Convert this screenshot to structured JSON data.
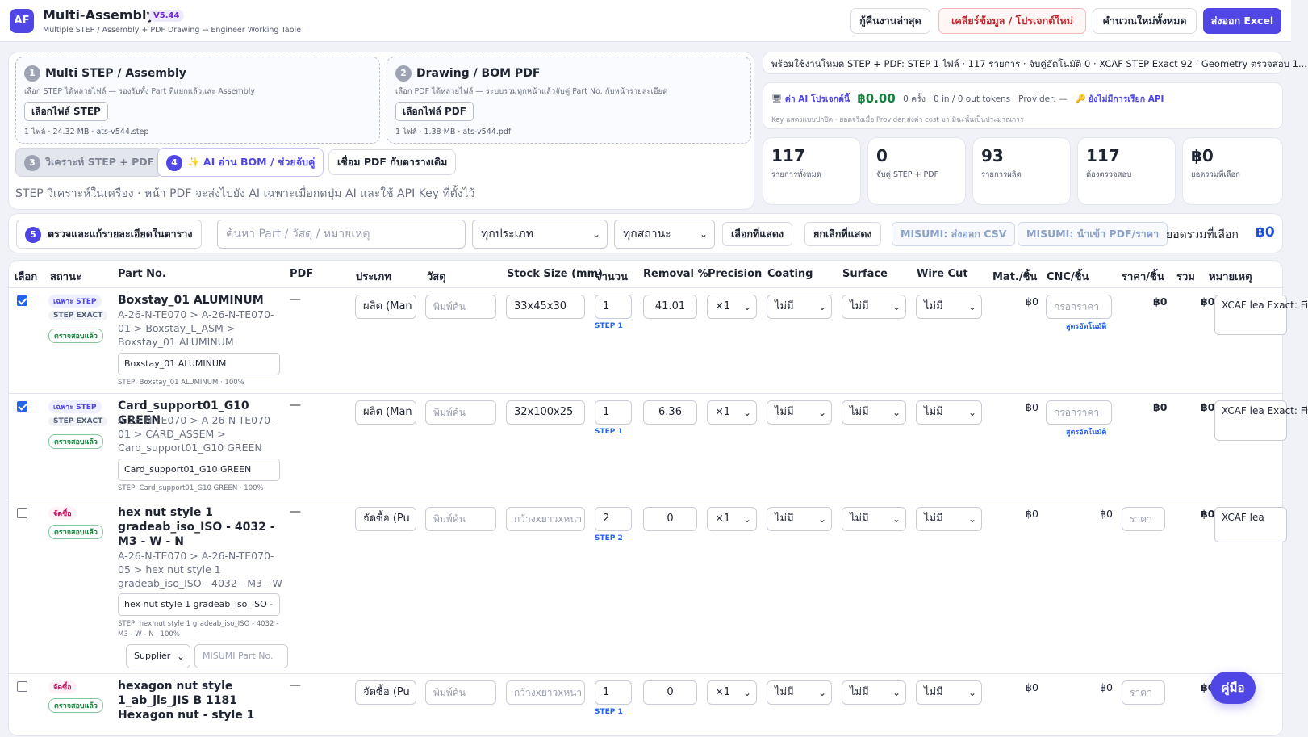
{
  "app": {
    "logo": "AF",
    "title": "Multi-Assembly",
    "version": "V5.44",
    "subtitle": "Multiple STEP / Assembly + PDF Drawing → Engineer Working Table"
  },
  "header_actions": {
    "restore": "กู้คืนงานล่าสุด",
    "clear": "เคลียร์ข้อมูล / โปรเจกต์ใหม่",
    "recalc": "คำนวณใหม่ทั้งหมด",
    "export": "ส่งออก Excel"
  },
  "step1": {
    "num": "1",
    "title": "Multi STEP / Assembly",
    "desc": "เลือก STEP ได้หลายไฟล์ — รองรับทั้ง Part ที่แยกแล้วและ Assembly",
    "button": "เลือกไฟล์ STEP",
    "file_info": "1 ไฟล์ · 24.32 MB · ats-v544.step"
  },
  "step2": {
    "num": "2",
    "title": "Drawing / BOM PDF",
    "desc": "เลือก PDF ได้หลายไฟล์ — ระบบรวมทุกหน้าแล้วจับคู่ Part No. กับหน้ารายละเอียด",
    "button": "เลือกไฟล์ PDF",
    "file_info": "1 ไฟล์ · 1.38 MB · ats-v544.pdf"
  },
  "actions": {
    "analyze_num": "3",
    "analyze": "วิเคราะห์ STEP + PDF",
    "ai_num": "4",
    "ai": "✨ AI อ่าน BOM / ช่วยจับคู่",
    "link_pdf": "เชื่อม PDF กับตารางเดิม",
    "note": "STEP วิเคราะห์ในเครื่อง · หน้า PDF จะส่งไปยัง AI เฉพาะเมื่อกดปุ่ม AI และใช้ API Key ที่ตั้งไว้"
  },
  "status": {
    "text": "พร้อมใช้งานโหมด STEP + PDF: STEP 1 ไฟล์ · 117 รายการ · จับคู่อัตโนมัติ 0 · XCAF STEP Exact 92 · Geometry ตรวจสอบ 1..."
  },
  "cost": {
    "icon": "🖥",
    "label": "ค่า AI โปรเจกต์นี้",
    "amount": "฿0.00",
    "calls": "0 ครั้ง",
    "tokens": "0 in / 0 out tokens",
    "provider": "Provider: —",
    "warn_icon": "🔑",
    "warn": "ยังไม่มีการเรียก API",
    "note": "Key แสดงแบบปกปิด · ยอดจริงเมื่อ Provider ส่งค่า cost มา มิฉะนั้นเป็นประมาณการ"
  },
  "stats": [
    {
      "value": "117",
      "label": "รายการทั้งหมด"
    },
    {
      "value": "0",
      "label": "จับคู่ STEP + PDF"
    },
    {
      "value": "93",
      "label": "รายการผลิต"
    },
    {
      "value": "117",
      "label": "ต้องตรวจสอบ"
    },
    {
      "value": "฿0",
      "label": "ยอดรวมที่เลือก"
    }
  ],
  "filter": {
    "num": "5",
    "title": "ตรวจและแก้รายละเอียดในตาราง",
    "search_placeholder": "ค้นหา Part / วัสดุ / หมายเหตุ",
    "type_value": "ทุกประเภท",
    "status_value": "ทุกสถานะ",
    "select_shown": "เลือกที่แสดง",
    "deselect_shown": "ยกเลิกที่แสดง",
    "misumi_export": "MISUMI: ส่งออก CSV",
    "misumi_import": "MISUMI: นำเข้า PDF/ราคา",
    "total_label": "ยอดรวมที่เลือก",
    "total_value": "฿0"
  },
  "columns": [
    "เลือก",
    "สถานะ",
    "Part No.",
    "PDF",
    "ประเภท",
    "วัสดุ",
    "Stock Size (mm)",
    "จำนวน",
    "Removal %",
    "Precision",
    "Coating",
    "Surface",
    "Wire Cut",
    "Mat./ชิ้น",
    "CNC/ชิ้น",
    "ราคา/ชิ้น",
    "รวม",
    "หมายเหตุ"
  ],
  "rows": [
    {
      "checked": true,
      "badges": [
        "เฉพาะ STEP",
        "STEP EXACT",
        "ตรวจสอบแล้ว"
      ],
      "name": "Boxstay_01 ALUMINUM",
      "path": "A-26-N-TE070 > A-26-N-TE070-01 > Boxstay_L_ASM > Boxstay_01 ALUMINUM",
      "name_input": "Boxstay_01 ALUMINUM",
      "meta": "STEP: Boxstay_01 ALUMINUM · 100%",
      "pdf": "—",
      "type": "ผลิต (Man",
      "material_placeholder": "พิมพ์ค้น",
      "stock": "33x45x30",
      "qty": "1",
      "qty_note": "STEP 1",
      "removal": "41.01",
      "precision": "×1",
      "coating": "ไม่มี",
      "surface": "ไม่มี",
      "wirecut": "ไม่มี",
      "mat_cost": "฿0",
      "cnc_placeholder": "กรอกราคา",
      "cnc_note": "สูตรอัตโนมัติ",
      "unit_price": "฿0",
      "total": "฿0",
      "note": "XCAF lea Exact: Fi"
    },
    {
      "checked": true,
      "badges": [
        "เฉพาะ STEP",
        "STEP EXACT",
        "ตรวจสอบแล้ว"
      ],
      "name": "Card_support01_G10 GREEN",
      "path": "A-26-N-TE070 > A-26-N-TE070-01 > CARD_ASSEM > Card_support01_G10 GREEN",
      "name_input": "Card_support01_G10 GREEN",
      "meta": "STEP: Card_support01_G10 GREEN · 100%",
      "pdf": "—",
      "type": "ผลิต (Man",
      "material_placeholder": "พิมพ์ค้น",
      "stock": "32x100x25",
      "qty": "1",
      "qty_note": "STEP 1",
      "removal": "6.36",
      "precision": "×1",
      "coating": "ไม่มี",
      "surface": "ไม่มี",
      "wirecut": "ไม่มี",
      "mat_cost": "฿0",
      "cnc_placeholder": "กรอกราคา",
      "cnc_note": "สูตรอัตโนมัติ",
      "unit_price": "฿0",
      "total": "฿0",
      "note": "XCAF lea Exact: Fi"
    },
    {
      "checked": false,
      "badges": [
        "จัดซื้อ",
        "ตรวจสอบแล้ว"
      ],
      "name": "hex nut style 1 gradeab_iso_ISO - 4032 - M3 - W - N",
      "path": "A-26-N-TE070 > A-26-N-TE070-05 > hex nut style 1 gradeab_iso_ISO - 4032 - M3 - W - N",
      "name_input": "hex nut style 1 gradeab_iso_ISO -",
      "meta": "STEP: hex nut style 1 gradeab_iso_ISO - 4032 - M3 - W - N · 100%",
      "supplier": "Supplier",
      "misumi_placeholder": "MISUMI Part No.",
      "pdf": "—",
      "type": "จัดซื้อ (Pu",
      "material_placeholder": "พิมพ์ค้น",
      "stock_placeholder": "กว้างxยาวxหนา",
      "qty": "2",
      "qty_note": "STEP 2",
      "removal": "0",
      "precision": "×1",
      "coating": "ไม่มี",
      "surface": "ไม่มี",
      "wirecut": "ไม่มี",
      "mat_cost": "฿0",
      "cnc_cost": "฿0",
      "price_placeholder": "ราคา",
      "total": "฿0",
      "note": "XCAF lea"
    },
    {
      "checked": false,
      "badges": [
        "จัดซื้อ",
        "ตรวจสอบแล้ว"
      ],
      "name": "hexagon nut style 1_ab_jis_JIS B 1181 Hexagon nut - style 1",
      "pdf": "—",
      "type": "จัดซื้อ (Pu",
      "material_placeholder": "พิมพ์ค้น",
      "stock_placeholder": "กว้างxยาวxหนา",
      "qty": "1",
      "qty_note": "STEP 1",
      "removal": "0",
      "precision": "×1",
      "coating": "ไม่มี",
      "surface": "ไม่มี",
      "wirecut": "ไม่มี",
      "mat_cost": "฿0",
      "cnc_cost": "฿0",
      "price_placeholder": "ราคา",
      "total": "฿0"
    }
  ],
  "help": "คู่มือ"
}
